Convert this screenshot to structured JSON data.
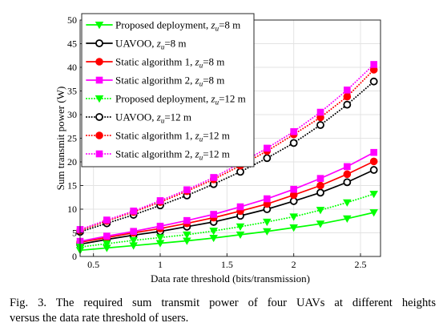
{
  "chart_data": {
    "type": "line",
    "xlabel": "Data rate threshold (bits/transmission)",
    "ylabel": "Sum transmit power (W)",
    "xlim": [
      0.4,
      2.65
    ],
    "ylim": [
      0,
      50
    ],
    "xticks": [
      0.5,
      1,
      1.5,
      2,
      2.5
    ],
    "xtick_labels": [
      "0.5",
      "1",
      "1.5",
      "2",
      "2.5"
    ],
    "yticks": [
      0,
      5,
      10,
      15,
      20,
      25,
      30,
      35,
      40,
      45,
      50
    ],
    "ytick_labels": [
      "0",
      "5",
      "10",
      "15",
      "20",
      "25",
      "30",
      "35",
      "40",
      "45",
      "50"
    ],
    "grid": true,
    "legend_position": "top-left",
    "x": [
      0.4,
      0.6,
      0.8,
      1.0,
      1.2,
      1.4,
      1.6,
      1.8,
      2.0,
      2.2,
      2.4,
      2.6
    ],
    "series": [
      {
        "label_pre": "Proposed deployment, ",
        "label_var": "z",
        "label_sub": "u",
        "label_post": "=8 m",
        "color": "#00ff00",
        "dash": "solid",
        "marker": "triangle-down",
        "values": [
          1.3,
          1.8,
          2.3,
          2.8,
          3.3,
          3.9,
          4.6,
          5.3,
          6.1,
          6.9,
          8.0,
          9.3
        ]
      },
      {
        "label_pre": "UAVOO, ",
        "label_var": "z",
        "label_sub": "u",
        "label_post": "=8 m",
        "color": "#000000",
        "dash": "solid",
        "marker": "circle",
        "values": [
          2.6,
          3.6,
          4.5,
          5.3,
          6.3,
          7.3,
          8.6,
          10.0,
          11.7,
          13.5,
          15.7,
          18.3
        ]
      },
      {
        "label_pre": "Static algorithm 1, ",
        "label_var": "z",
        "label_sub": "u",
        "label_post": "=8 m",
        "color": "#ff0000",
        "dash": "solid",
        "marker": "filled-circle",
        "values": [
          3.0,
          4.0,
          5.0,
          5.9,
          7.0,
          8.2,
          9.6,
          11.1,
          13.0,
          15.0,
          17.4,
          20.1
        ]
      },
      {
        "label_pre": "Static algorithm 2, ",
        "label_var": "z",
        "label_sub": "u",
        "label_post": "=8 m",
        "color": "#ff00ff",
        "dash": "solid",
        "marker": "square",
        "values": [
          3.2,
          4.3,
          5.3,
          6.4,
          7.6,
          8.9,
          10.5,
          12.2,
          14.2,
          16.5,
          19.0,
          22.0
        ]
      },
      {
        "label_pre": "Proposed deployment, ",
        "label_var": "z",
        "label_sub": "u",
        "label_post": "=12 m",
        "color": "#00ff00",
        "dash": "dotted",
        "marker": "triangle-down",
        "values": [
          2.0,
          2.7,
          3.4,
          4.0,
          4.6,
          5.4,
          6.3,
          7.3,
          8.4,
          9.8,
          11.4,
          13.2
        ]
      },
      {
        "label_pre": "UAVOO, ",
        "label_var": "z",
        "label_sub": "u",
        "label_post": "=12 m",
        "color": "#000000",
        "dash": "dotted",
        "marker": "circle",
        "values": [
          5.2,
          7.0,
          8.8,
          10.8,
          12.9,
          15.3,
          17.9,
          20.8,
          24.0,
          27.8,
          32.1,
          37.0
        ]
      },
      {
        "label_pre": "Static algorithm 1, ",
        "label_var": "z",
        "label_sub": "u",
        "label_post": "=12 m",
        "color": "#ff0000",
        "dash": "dotted",
        "marker": "filled-circle",
        "values": [
          5.5,
          7.5,
          9.4,
          11.5,
          13.8,
          16.3,
          19.2,
          22.3,
          25.8,
          29.4,
          33.8,
          39.5
        ]
      },
      {
        "label_pre": "Static algorithm 2, ",
        "label_var": "z",
        "label_sub": "u",
        "label_post": "=12 m",
        "color": "#ff00ff",
        "dash": "dotted",
        "marker": "square",
        "values": [
          5.7,
          7.7,
          9.6,
          11.8,
          14.1,
          16.7,
          19.7,
          22.9,
          26.4,
          30.5,
          35.2,
          40.6
        ]
      }
    ]
  },
  "caption": {
    "line1": "Fig. 3.  The required sum transmit power of four UAVs at different heights",
    "line2": "versus the data rate threshold of users."
  }
}
